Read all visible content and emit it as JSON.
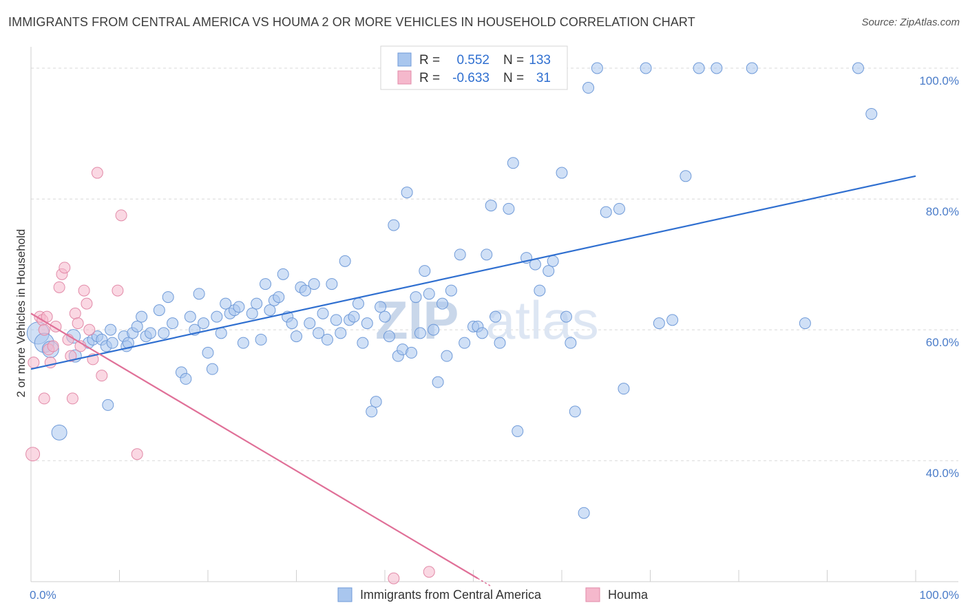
{
  "title": "IMMIGRANTS FROM CENTRAL AMERICA VS HOUMA 2 OR MORE VEHICLES IN HOUSEHOLD CORRELATION CHART",
  "source": "Source: ZipAtlas.com",
  "watermark": {
    "zip": "ZIP",
    "atlas": "atlas"
  },
  "colors": {
    "blue": "#2f6fd0",
    "blue_fill": "#a9c6ee",
    "pink": "#e07098",
    "pink_fill": "#f5b8cc",
    "grid": "#d8d8d8"
  },
  "legend": {
    "rows": [
      {
        "r_label": "R =",
        "r_value": "0.552",
        "n_label": "N =",
        "n_value": "133"
      },
      {
        "r_label": "R =",
        "r_value": "-0.633",
        "n_label": "N =",
        "n_value": "31"
      }
    ]
  },
  "bottom_legend": [
    "Immigrants from Central America",
    "Houma"
  ],
  "chart_data": {
    "type": "scatter",
    "xlabel": "",
    "ylabel": "2 or more Vehicles in Household",
    "xlim": [
      0,
      100
    ],
    "ylim": [
      21.5,
      102
    ],
    "x_tick_labels": [
      "0.0%",
      "100.0%"
    ],
    "y_ticks": [
      40,
      60,
      80,
      100
    ],
    "y_tick_labels": [
      "40.0%",
      "60.0%",
      "80.0%",
      "100.0%"
    ],
    "grid": "horizontal dashed",
    "legend_position": "top-center",
    "series": [
      {
        "name": "Immigrants from Central America",
        "trend": {
          "x": [
            0,
            100
          ],
          "y": [
            54.0,
            83.5
          ]
        },
        "points": [
          [
            0.8,
            59.5,
            16
          ],
          [
            1.5,
            58.0,
            14
          ],
          [
            2.2,
            57.0,
            12
          ],
          [
            3.2,
            44.3,
            11
          ],
          [
            4.8,
            59.0,
            10
          ],
          [
            5.0,
            56.0,
            9
          ],
          [
            6.5,
            58.0,
            8
          ],
          [
            7.0,
            58.5,
            8
          ],
          [
            7.5,
            59.0,
            8
          ],
          [
            8.0,
            58.5,
            8
          ],
          [
            8.5,
            57.5,
            8
          ],
          [
            9.0,
            60.0,
            8
          ],
          [
            9.2,
            58.0,
            8
          ],
          [
            8.7,
            48.5,
            8
          ],
          [
            10.5,
            59.0,
            8
          ],
          [
            10.8,
            57.5,
            8
          ],
          [
            11.0,
            58.0,
            8
          ],
          [
            11.5,
            59.5,
            8
          ],
          [
            12.0,
            60.5,
            8
          ],
          [
            12.5,
            62.0,
            8
          ],
          [
            13.0,
            59.0,
            8
          ],
          [
            13.5,
            59.5,
            8
          ],
          [
            14.5,
            63.0,
            8
          ],
          [
            15.0,
            59.5,
            8
          ],
          [
            15.5,
            65.0,
            8
          ],
          [
            16.0,
            61.0,
            8
          ],
          [
            17.0,
            53.5,
            8
          ],
          [
            17.5,
            52.5,
            8
          ],
          [
            18.0,
            62.0,
            8
          ],
          [
            18.5,
            60.0,
            8
          ],
          [
            19.0,
            65.5,
            8
          ],
          [
            19.5,
            61.0,
            8
          ],
          [
            20.0,
            56.5,
            8
          ],
          [
            20.5,
            54.0,
            8
          ],
          [
            21.0,
            62.0,
            8
          ],
          [
            21.5,
            59.5,
            8
          ],
          [
            22.0,
            64.0,
            8
          ],
          [
            22.5,
            62.5,
            8
          ],
          [
            23.0,
            63.0,
            8
          ],
          [
            23.5,
            63.5,
            8
          ],
          [
            24.0,
            58.0,
            8
          ],
          [
            25.0,
            62.5,
            8
          ],
          [
            25.5,
            64.0,
            8
          ],
          [
            26.0,
            58.5,
            8
          ],
          [
            26.5,
            67.0,
            8
          ],
          [
            27.0,
            63.0,
            8
          ],
          [
            27.5,
            64.5,
            8
          ],
          [
            28.0,
            65.0,
            8
          ],
          [
            28.5,
            68.5,
            8
          ],
          [
            29.0,
            62.0,
            8
          ],
          [
            29.5,
            61.0,
            8
          ],
          [
            30.0,
            59.0,
            8
          ],
          [
            30.5,
            66.5,
            8
          ],
          [
            31.0,
            66.0,
            8
          ],
          [
            31.5,
            61.0,
            8
          ],
          [
            32.0,
            67.0,
            8
          ],
          [
            32.5,
            59.5,
            8
          ],
          [
            33.0,
            62.5,
            8
          ],
          [
            33.5,
            58.5,
            8
          ],
          [
            34.0,
            67.0,
            8
          ],
          [
            34.5,
            61.5,
            8
          ],
          [
            35.0,
            59.5,
            8
          ],
          [
            35.5,
            70.5,
            8
          ],
          [
            36.0,
            61.5,
            8
          ],
          [
            36.5,
            62.0,
            8
          ],
          [
            37.0,
            64.0,
            8
          ],
          [
            37.5,
            58.0,
            8
          ],
          [
            38.0,
            61.0,
            8
          ],
          [
            38.5,
            47.5,
            8
          ],
          [
            39.0,
            49.0,
            8
          ],
          [
            39.5,
            63.5,
            8
          ],
          [
            40.0,
            62.0,
            8
          ],
          [
            40.5,
            59.0,
            8
          ],
          [
            41.0,
            76.0,
            8
          ],
          [
            41.5,
            56.0,
            8
          ],
          [
            42.0,
            57.0,
            8
          ],
          [
            42.5,
            81.0,
            8
          ],
          [
            43.0,
            56.5,
            8
          ],
          [
            43.5,
            65.0,
            8
          ],
          [
            44.0,
            59.5,
            8
          ],
          [
            44.5,
            69.0,
            8
          ],
          [
            45.0,
            65.5,
            8
          ],
          [
            45.5,
            60.0,
            8
          ],
          [
            46.0,
            52.0,
            8
          ],
          [
            46.5,
            64.0,
            8
          ],
          [
            47.0,
            56.0,
            8
          ],
          [
            47.5,
            66.0,
            8
          ],
          [
            48.5,
            71.5,
            8
          ],
          [
            49.0,
            58.0,
            8
          ],
          [
            50.0,
            60.5,
            8
          ],
          [
            50.5,
            60.5,
            8
          ],
          [
            51.0,
            59.5,
            8
          ],
          [
            51.5,
            71.5,
            8
          ],
          [
            52.0,
            79.0,
            8
          ],
          [
            52.5,
            62.0,
            8
          ],
          [
            53.0,
            58.0,
            8
          ],
          [
            54.0,
            78.5,
            8
          ],
          [
            54.5,
            85.5,
            8
          ],
          [
            55.0,
            44.5,
            8
          ],
          [
            56.0,
            71.0,
            8
          ],
          [
            56.5,
            100.0,
            8
          ],
          [
            57.0,
            70.0,
            8
          ],
          [
            57.5,
            66.0,
            8
          ],
          [
            58.5,
            69.0,
            8
          ],
          [
            59.0,
            70.5,
            8
          ],
          [
            60.0,
            84.0,
            8
          ],
          [
            60.5,
            62.0,
            8
          ],
          [
            61.0,
            58.0,
            8
          ],
          [
            61.5,
            47.5,
            8
          ],
          [
            62.5,
            32.0,
            8
          ],
          [
            63.0,
            97.0,
            8
          ],
          [
            64.0,
            100.0,
            8
          ],
          [
            65.0,
            78.0,
            8
          ],
          [
            66.5,
            78.5,
            8
          ],
          [
            67.0,
            51.0,
            8
          ],
          [
            69.5,
            100.0,
            8
          ],
          [
            71.0,
            61.0,
            8
          ],
          [
            72.5,
            61.5,
            8
          ],
          [
            74.0,
            83.5,
            8
          ],
          [
            75.5,
            100.0,
            8
          ],
          [
            77.5,
            100.0,
            8
          ],
          [
            81.5,
            100.0,
            8
          ],
          [
            87.5,
            61.0,
            8
          ],
          [
            93.5,
            100.0,
            8
          ],
          [
            95.0,
            93.0,
            8
          ]
        ]
      },
      {
        "name": "Houma",
        "trend": {
          "x": [
            0,
            50.5
          ],
          "y": [
            62.5,
            22.0
          ]
        },
        "points": [
          [
            0.2,
            41.0,
            10
          ],
          [
            0.3,
            55.0,
            8
          ],
          [
            1.0,
            62.0,
            8
          ],
          [
            1.3,
            61.5,
            8
          ],
          [
            1.5,
            60.0,
            8
          ],
          [
            1.8,
            62.0,
            8
          ],
          [
            2.0,
            57.0,
            8
          ],
          [
            2.2,
            55.0,
            8
          ],
          [
            2.5,
            57.5,
            8
          ],
          [
            2.8,
            60.5,
            8
          ],
          [
            3.2,
            66.5,
            8
          ],
          [
            3.5,
            68.5,
            8
          ],
          [
            3.8,
            69.5,
            8
          ],
          [
            4.2,
            58.5,
            8
          ],
          [
            4.5,
            56.0,
            8
          ],
          [
            4.7,
            49.5,
            8
          ],
          [
            5.0,
            62.5,
            8
          ],
          [
            5.3,
            61.0,
            8
          ],
          [
            5.6,
            57.5,
            8
          ],
          [
            6.0,
            66.0,
            8
          ],
          [
            6.3,
            64.0,
            8
          ],
          [
            6.6,
            60.0,
            8
          ],
          [
            7.0,
            55.5,
            8
          ],
          [
            7.5,
            84.0,
            8
          ],
          [
            8.0,
            53.0,
            8
          ],
          [
            9.8,
            66.0,
            8
          ],
          [
            10.2,
            77.5,
            8
          ],
          [
            12.0,
            41.0,
            8
          ],
          [
            1.5,
            49.5,
            8
          ],
          [
            41.0,
            22.0,
            8
          ],
          [
            45.0,
            23.0,
            8
          ]
        ]
      }
    ]
  }
}
